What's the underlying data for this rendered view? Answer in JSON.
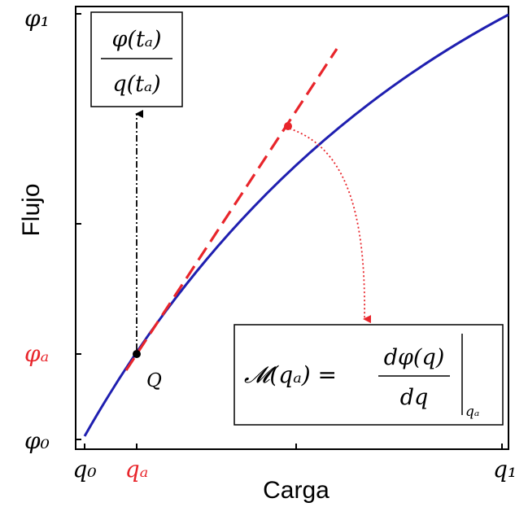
{
  "axes": {
    "xlabel": "Carga",
    "ylabel": "Flujo"
  },
  "ticks": {
    "phi1": "φ₁",
    "phia": "φₐ",
    "phi0": "φ₀",
    "q0": "q₀",
    "qa": "qₐ",
    "q1": "q₁"
  },
  "point_label": "Q",
  "ratio_box": {
    "numerator": "φ(tₐ)",
    "denominator": "q(tₐ)"
  },
  "memristance_box": {
    "lhs": "𝓜(qₐ) =",
    "numerator": "dφ(q)",
    "denominator": "dq",
    "subscript": "qₐ"
  },
  "colors": {
    "curve": "#1f1fb0",
    "tangent": "#e8252b",
    "highlight": "#e8252b",
    "text": "#000000"
  }
}
